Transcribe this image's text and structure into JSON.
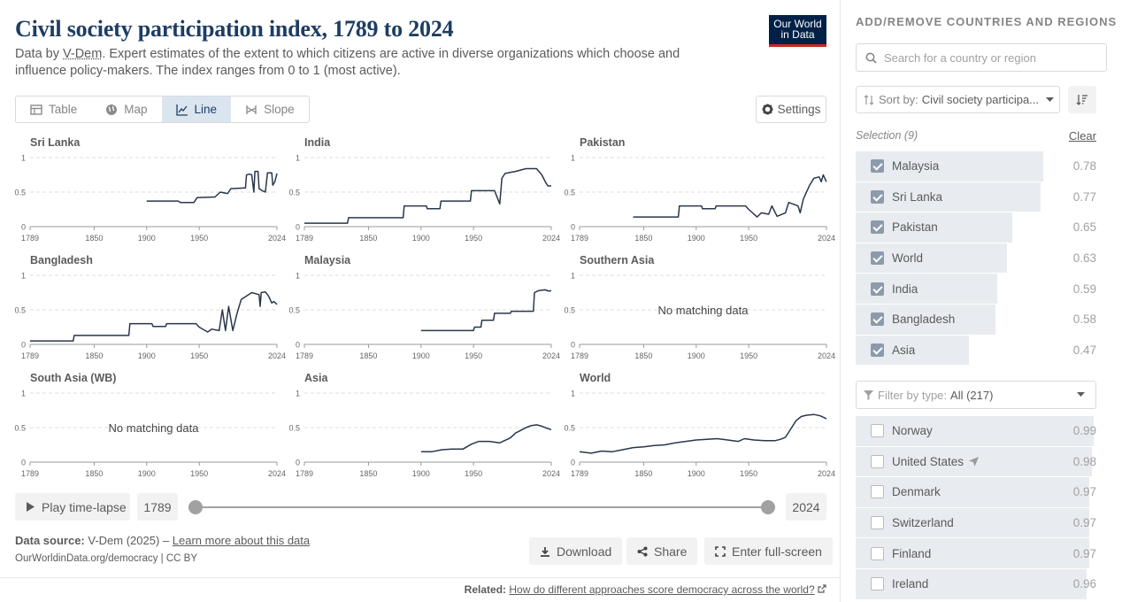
{
  "header": {
    "title": "Civil society participation index, 1789 to 2024",
    "subtitle_prefix": "Data by ",
    "subtitle_source": "V-Dem",
    "subtitle_rest": ". Expert estimates of the extent to which citizens are active in diverse organizations which choose and influence policy-makers. The index ranges from 0 to 1 (most active).",
    "logo_line1": "Our World",
    "logo_line2": "in Data"
  },
  "tabs": [
    {
      "label": "Table",
      "icon": "table-icon",
      "active": false
    },
    {
      "label": "Map",
      "icon": "globe-icon",
      "active": false
    },
    {
      "label": "Line",
      "icon": "line-chart-icon",
      "active": true
    },
    {
      "label": "Slope",
      "icon": "slope-icon",
      "active": false
    }
  ],
  "settings_label": "Settings",
  "chart_data": {
    "type": "line",
    "layout": "small-multiples",
    "xlim": [
      1789,
      2024
    ],
    "ylim": [
      0,
      1
    ],
    "x_ticks": [
      "1789",
      "1850",
      "1900",
      "1950",
      "2024"
    ],
    "y_ticks": [
      "0",
      "0.5",
      "1"
    ],
    "no_data_text": "No matching data",
    "line_color": "#29374b",
    "grid": "dashed horizontal",
    "panels": [
      {
        "name": "Sri Lanka",
        "points": [
          [
            1900,
            0.37
          ],
          [
            1930,
            0.37
          ],
          [
            1932,
            0.35
          ],
          [
            1945,
            0.35
          ],
          [
            1948,
            0.42
          ],
          [
            1965,
            0.43
          ],
          [
            1970,
            0.5
          ],
          [
            1977,
            0.48
          ],
          [
            1980,
            0.55
          ],
          [
            1994,
            0.56
          ],
          [
            1995,
            0.75
          ],
          [
            1998,
            0.76
          ],
          [
            2000,
            0.75
          ],
          [
            2002,
            0.5
          ],
          [
            2003,
            0.8
          ],
          [
            2006,
            0.8
          ],
          [
            2007,
            0.55
          ],
          [
            2010,
            0.52
          ],
          [
            2013,
            0.5
          ],
          [
            2015,
            0.78
          ],
          [
            2019,
            0.78
          ],
          [
            2020,
            0.6
          ],
          [
            2022,
            0.65
          ],
          [
            2024,
            0.77
          ]
        ]
      },
      {
        "name": "India",
        "points": [
          [
            1789,
            0.05
          ],
          [
            1830,
            0.05
          ],
          [
            1831,
            0.13
          ],
          [
            1883,
            0.13
          ],
          [
            1884,
            0.3
          ],
          [
            1905,
            0.3
          ],
          [
            1906,
            0.26
          ],
          [
            1918,
            0.26
          ],
          [
            1919,
            0.37
          ],
          [
            1947,
            0.37
          ],
          [
            1948,
            0.52
          ],
          [
            1970,
            0.52
          ],
          [
            1975,
            0.33
          ],
          [
            1977,
            0.7
          ],
          [
            1980,
            0.77
          ],
          [
            1990,
            0.8
          ],
          [
            2000,
            0.84
          ],
          [
            2010,
            0.84
          ],
          [
            2015,
            0.75
          ],
          [
            2019,
            0.63
          ],
          [
            2021,
            0.59
          ],
          [
            2024,
            0.59
          ]
        ]
      },
      {
        "name": "Pakistan",
        "points": [
          [
            1840,
            0.14
          ],
          [
            1883,
            0.14
          ],
          [
            1884,
            0.3
          ],
          [
            1905,
            0.3
          ],
          [
            1906,
            0.26
          ],
          [
            1918,
            0.26
          ],
          [
            1919,
            0.3
          ],
          [
            1947,
            0.3
          ],
          [
            1950,
            0.25
          ],
          [
            1958,
            0.14
          ],
          [
            1962,
            0.2
          ],
          [
            1969,
            0.18
          ],
          [
            1972,
            0.3
          ],
          [
            1977,
            0.15
          ],
          [
            1985,
            0.2
          ],
          [
            1988,
            0.35
          ],
          [
            1997,
            0.3
          ],
          [
            1999,
            0.2
          ],
          [
            2002,
            0.4
          ],
          [
            2008,
            0.6
          ],
          [
            2012,
            0.7
          ],
          [
            2017,
            0.72
          ],
          [
            2019,
            0.65
          ],
          [
            2021,
            0.75
          ],
          [
            2023,
            0.68
          ],
          [
            2024,
            0.65
          ]
        ]
      },
      {
        "name": "Bangladesh",
        "points": [
          [
            1789,
            0.05
          ],
          [
            1830,
            0.05
          ],
          [
            1831,
            0.13
          ],
          [
            1883,
            0.13
          ],
          [
            1884,
            0.3
          ],
          [
            1905,
            0.3
          ],
          [
            1906,
            0.26
          ],
          [
            1918,
            0.26
          ],
          [
            1919,
            0.3
          ],
          [
            1947,
            0.3
          ],
          [
            1950,
            0.25
          ],
          [
            1958,
            0.18
          ],
          [
            1962,
            0.22
          ],
          [
            1969,
            0.2
          ],
          [
            1972,
            0.5
          ],
          [
            1975,
            0.2
          ],
          [
            1978,
            0.55
          ],
          [
            1982,
            0.2
          ],
          [
            1986,
            0.45
          ],
          [
            1990,
            0.65
          ],
          [
            1995,
            0.7
          ],
          [
            2000,
            0.75
          ],
          [
            2007,
            0.72
          ],
          [
            2008,
            0.55
          ],
          [
            2009,
            0.75
          ],
          [
            2013,
            0.76
          ],
          [
            2016,
            0.7
          ],
          [
            2019,
            0.6
          ],
          [
            2021,
            0.62
          ],
          [
            2024,
            0.58
          ]
        ]
      },
      {
        "name": "Malaysia",
        "points": [
          [
            1900,
            0.2
          ],
          [
            1950,
            0.2
          ],
          [
            1951,
            0.25
          ],
          [
            1957,
            0.25
          ],
          [
            1958,
            0.35
          ],
          [
            1969,
            0.35
          ],
          [
            1970,
            0.45
          ],
          [
            1985,
            0.45
          ],
          [
            1986,
            0.48
          ],
          [
            2007,
            0.48
          ],
          [
            2008,
            0.75
          ],
          [
            2012,
            0.78
          ],
          [
            2018,
            0.79
          ],
          [
            2022,
            0.77
          ],
          [
            2024,
            0.78
          ]
        ]
      },
      {
        "name": "Southern Asia",
        "points": []
      },
      {
        "name": "South Asia (WB)",
        "points": []
      },
      {
        "name": "Asia",
        "points": [
          [
            1900,
            0.15
          ],
          [
            1910,
            0.15
          ],
          [
            1920,
            0.18
          ],
          [
            1930,
            0.19
          ],
          [
            1940,
            0.19
          ],
          [
            1948,
            0.26
          ],
          [
            1955,
            0.3
          ],
          [
            1965,
            0.3
          ],
          [
            1975,
            0.28
          ],
          [
            1985,
            0.35
          ],
          [
            1990,
            0.42
          ],
          [
            1995,
            0.46
          ],
          [
            2000,
            0.5
          ],
          [
            2005,
            0.53
          ],
          [
            2010,
            0.54
          ],
          [
            2015,
            0.52
          ],
          [
            2020,
            0.49
          ],
          [
            2024,
            0.47
          ]
        ]
      },
      {
        "name": "World",
        "points": [
          [
            1789,
            0.15
          ],
          [
            1800,
            0.13
          ],
          [
            1810,
            0.16
          ],
          [
            1820,
            0.15
          ],
          [
            1830,
            0.18
          ],
          [
            1840,
            0.21
          ],
          [
            1850,
            0.22
          ],
          [
            1860,
            0.24
          ],
          [
            1870,
            0.25
          ],
          [
            1880,
            0.28
          ],
          [
            1890,
            0.3
          ],
          [
            1900,
            0.32
          ],
          [
            1910,
            0.33
          ],
          [
            1920,
            0.34
          ],
          [
            1930,
            0.32
          ],
          [
            1940,
            0.3
          ],
          [
            1946,
            0.34
          ],
          [
            1955,
            0.32
          ],
          [
            1965,
            0.31
          ],
          [
            1975,
            0.31
          ],
          [
            1980,
            0.33
          ],
          [
            1985,
            0.36
          ],
          [
            1990,
            0.48
          ],
          [
            1995,
            0.6
          ],
          [
            2000,
            0.66
          ],
          [
            2005,
            0.68
          ],
          [
            2012,
            0.69
          ],
          [
            2018,
            0.67
          ],
          [
            2024,
            0.63
          ]
        ]
      }
    ]
  },
  "timeline": {
    "play_label": "Play time-lapse",
    "start_year": "1789",
    "end_year": "2024"
  },
  "footer": {
    "source_label": "Data source:",
    "source_value": "V-Dem (2025) – ",
    "source_link": "Learn more about this data",
    "url": "OurWorldinData.org/democracy | CC BY",
    "download_label": "Download",
    "share_label": "Share",
    "fullscreen_label": "Enter full-screen",
    "related_label": "Related:",
    "related_link": "How do different approaches score democracy across the world?"
  },
  "sidebar": {
    "heading": "ADD/REMOVE COUNTRIES AND REGIONS",
    "search_placeholder": "Search for a country or region",
    "sort_label": "Sort by:",
    "sort_value": "Civil society participa...",
    "selection_label": "Selection (9)",
    "clear_label": "Clear",
    "selected": [
      {
        "name": "Malaysia",
        "value": "0.78",
        "fraction": 0.78
      },
      {
        "name": "Sri Lanka",
        "value": "0.77",
        "fraction": 0.77
      },
      {
        "name": "Pakistan",
        "value": "0.65",
        "fraction": 0.65
      },
      {
        "name": "World",
        "value": "0.63",
        "fraction": 0.63
      },
      {
        "name": "India",
        "value": "0.59",
        "fraction": 0.59
      },
      {
        "name": "Bangladesh",
        "value": "0.58",
        "fraction": 0.58
      },
      {
        "name": "Asia",
        "value": "0.47",
        "fraction": 0.47
      }
    ],
    "filter_label": "Filter by type:",
    "filter_value": "All (217)",
    "others": [
      {
        "name": "Norway",
        "value": "0.99",
        "fraction": 0.99
      },
      {
        "name": "United States",
        "value": "0.98",
        "fraction": 0.98,
        "icon": "location-arrow-icon"
      },
      {
        "name": "Denmark",
        "value": "0.97",
        "fraction": 0.97
      },
      {
        "name": "Switzerland",
        "value": "0.97",
        "fraction": 0.97
      },
      {
        "name": "Finland",
        "value": "0.97",
        "fraction": 0.97
      },
      {
        "name": "Ireland",
        "value": "0.96",
        "fraction": 0.96
      }
    ]
  }
}
